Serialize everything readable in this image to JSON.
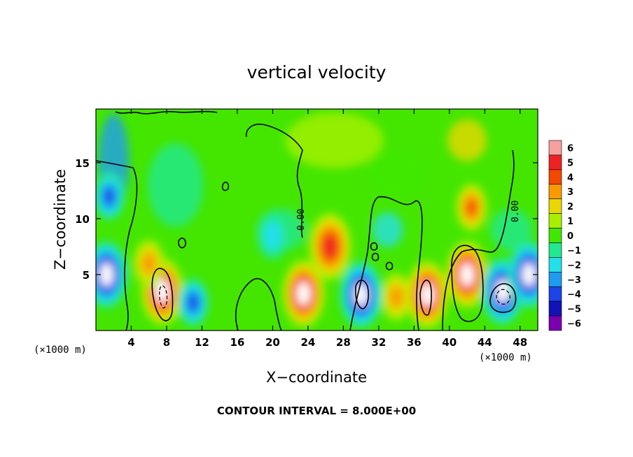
{
  "chart_data": {
    "type": "heatmap",
    "title": "vertical velocity",
    "xlabel": "X−coordinate",
    "ylabel": "Z−coordinate",
    "x_unit_label": "(×1000 m)",
    "x_unit_label_right": "(×1000 m)",
    "xlim": [
      0,
      50
    ],
    "ylim": [
      0,
      19.8
    ],
    "x_ticks": [
      4,
      8,
      12,
      16,
      20,
      24,
      28,
      32,
      36,
      40,
      44,
      48
    ],
    "x_tick_labels": [
      "4",
      "8",
      "12",
      "16",
      "20",
      "24",
      "28",
      "32",
      "36",
      "40",
      "44",
      "48"
    ],
    "y_ticks": [
      5,
      10,
      15
    ],
    "y_tick_labels": [
      "5",
      "10",
      "15"
    ],
    "colorbar": {
      "levels": [
        "6",
        "5",
        "4",
        "3",
        "2",
        "1",
        "0",
        "−1",
        "−2",
        "−3",
        "−4",
        "−5",
        "−6"
      ],
      "colors": [
        "#f7a0a0",
        "#ee2222",
        "#f44800",
        "#fa9a00",
        "#e8d800",
        "#a8f000",
        "#40e800",
        "#22e890",
        "#24e0e8",
        "#1e9cf0",
        "#1c44e8",
        "#1212b8",
        "#7a00b0"
      ]
    },
    "contour_label": "0.00",
    "features": [
      {
        "x": 1.5,
        "z": 12,
        "value": -4
      },
      {
        "x": 1.2,
        "z": 5,
        "value": -6
      },
      {
        "x": 7.5,
        "z": 3.5,
        "value": 6
      },
      {
        "x": 6,
        "z": 6,
        "value": 3
      },
      {
        "x": 11,
        "z": 2.5,
        "value": -4
      },
      {
        "x": 20,
        "z": 8.5,
        "value": -2
      },
      {
        "x": 23.5,
        "z": 3.3,
        "value": 6
      },
      {
        "x": 26.5,
        "z": 7.5,
        "value": 5
      },
      {
        "x": 30,
        "z": 3.2,
        "value": -6
      },
      {
        "x": 34,
        "z": 3,
        "value": 3
      },
      {
        "x": 37.5,
        "z": 3.2,
        "value": 6
      },
      {
        "x": 42,
        "z": 5,
        "value": 6
      },
      {
        "x": 42.5,
        "z": 11,
        "value": 4
      },
      {
        "x": 46,
        "z": 3.5,
        "value": -6
      },
      {
        "x": 49,
        "z": 5,
        "value": -6
      }
    ],
    "contour_interval_note": "CONTOUR INTERVAL = 8.000E+00"
  }
}
